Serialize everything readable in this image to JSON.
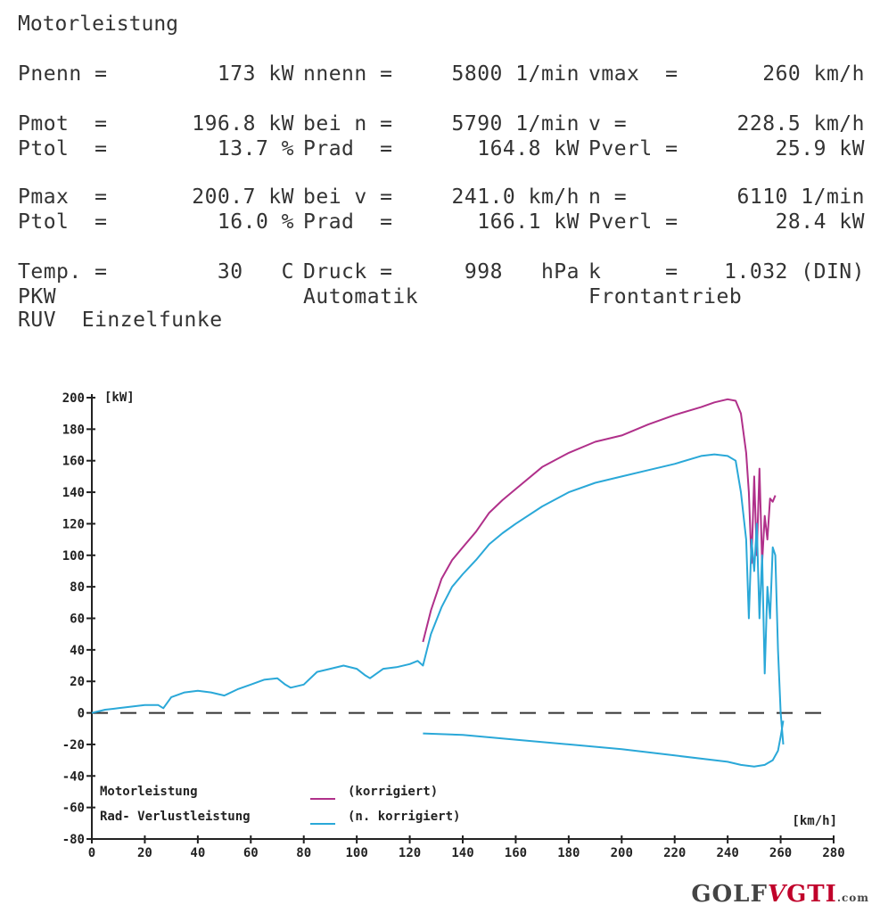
{
  "report": {
    "title": "Motorleistung",
    "rows": [
      [
        {
          "label": "Pnenn =",
          "value": "173 kW"
        },
        {
          "label": "nnenn =",
          "value": "5800 1/min"
        },
        {
          "label": "vmax  =",
          "value": "260 km/h"
        }
      ],
      [
        {
          "label": "Pmot  =",
          "value": "196.8 kW"
        },
        {
          "label": "bei n =",
          "value": "5790 1/min"
        },
        {
          "label": "v =",
          "value": "228.5 km/h"
        }
      ],
      [
        {
          "label": "Ptol  =",
          "value": "13.7 %"
        },
        {
          "label": "Prad  =",
          "value": "164.8 kW"
        },
        {
          "label": "Pverl =",
          "value": "25.9 kW"
        }
      ],
      [
        {
          "label": "Pmax  =",
          "value": "200.7 kW"
        },
        {
          "label": "bei v =",
          "value": "241.0 km/h"
        },
        {
          "label": "n =",
          "value": "6110 1/min"
        }
      ],
      [
        {
          "label": "Ptol  =",
          "value": "16.0 %"
        },
        {
          "label": "Prad  =",
          "value": "166.1 kW"
        },
        {
          "label": "Pverl =",
          "value": "28.4 kW"
        }
      ],
      [
        {
          "label": "Temp. =",
          "value": "30   C"
        },
        {
          "label": "Druck =",
          "value": "998   hPa"
        },
        {
          "label": "k     =",
          "value": "1.032 (DIN)"
        }
      ]
    ],
    "extra": [
      "PKW",
      "Automatik",
      "Frontantrieb",
      "RUV  Einzelfunke"
    ]
  },
  "chart_data": {
    "type": "line",
    "ylabel": "[kW]",
    "xlabel": "[km/h]",
    "xlim": [
      0,
      280
    ],
    "ylim": [
      -80,
      200
    ],
    "xticks": [
      0,
      20,
      40,
      60,
      80,
      100,
      120,
      140,
      160,
      180,
      200,
      220,
      240,
      260,
      280
    ],
    "yticks": [
      200,
      180,
      160,
      140,
      120,
      100,
      80,
      60,
      40,
      20,
      0,
      -20,
      -40,
      -60,
      -80
    ],
    "grid": false,
    "legend": [
      {
        "text": "Motorleistung",
        "line_label": "(korrigiert)",
        "color": "#b0308a"
      },
      {
        "text": "Rad- Verlustleistung",
        "line_label": "(n. korrigiert)",
        "color": "#2aa8d8"
      }
    ],
    "series": [
      {
        "color": "#b0308a",
        "x": [
          125,
          128,
          132,
          136,
          140,
          145,
          150,
          155,
          160,
          170,
          180,
          190,
          200,
          210,
          220,
          230,
          235,
          240,
          243,
          245,
          247,
          248,
          249,
          250,
          251,
          252,
          253,
          254,
          255,
          256,
          257,
          258
        ],
        "y": [
          45,
          65,
          85,
          97,
          105,
          115,
          127,
          135,
          142,
          156,
          165,
          172,
          176,
          183,
          189,
          194,
          197,
          199,
          198,
          190,
          165,
          140,
          95,
          150,
          100,
          155,
          95,
          125,
          110,
          136,
          134,
          138
        ]
      },
      {
        "color": "#2aa8d8",
        "x": [
          0,
          5,
          10,
          15,
          20,
          25,
          27,
          30,
          35,
          40,
          45,
          50,
          55,
          60,
          65,
          70,
          73,
          75,
          80,
          85,
          90,
          95,
          100,
          103,
          105,
          110,
          115,
          120,
          123,
          125,
          128,
          132,
          136,
          140,
          145,
          150,
          155,
          160,
          170,
          180,
          190,
          200,
          210,
          220,
          230,
          235,
          240,
          243,
          245,
          247,
          248,
          249,
          250,
          251,
          252,
          253,
          254,
          255,
          256,
          257,
          258,
          259,
          260,
          261
        ],
        "y": [
          0,
          2,
          3,
          4,
          5,
          5,
          3,
          10,
          13,
          14,
          13,
          11,
          15,
          18,
          21,
          22,
          18,
          16,
          18,
          26,
          28,
          30,
          28,
          24,
          22,
          28,
          29,
          31,
          33,
          30,
          50,
          67,
          80,
          88,
          97,
          107,
          114,
          120,
          131,
          140,
          146,
          150,
          154,
          158,
          163,
          164,
          163,
          160,
          140,
          110,
          60,
          110,
          90,
          120,
          60,
          100,
          25,
          80,
          60,
          105,
          100,
          40,
          0,
          -20
        ]
      },
      {
        "color": "#2aa8d8",
        "x": [
          125,
          140,
          160,
          180,
          200,
          220,
          240,
          245,
          250,
          254,
          257,
          259,
          260,
          261
        ],
        "y": [
          -13,
          -14,
          -17,
          -20,
          -23,
          -27,
          -31,
          -33,
          -34,
          -33,
          -30,
          -24,
          -15,
          -5
        ]
      }
    ],
    "baseline": {
      "y": 0,
      "style": "dashed"
    }
  },
  "logo": {
    "text_left": "GOLF",
    "text_mid": "V",
    "text_right": "GTI",
    "suffix": ".com"
  }
}
